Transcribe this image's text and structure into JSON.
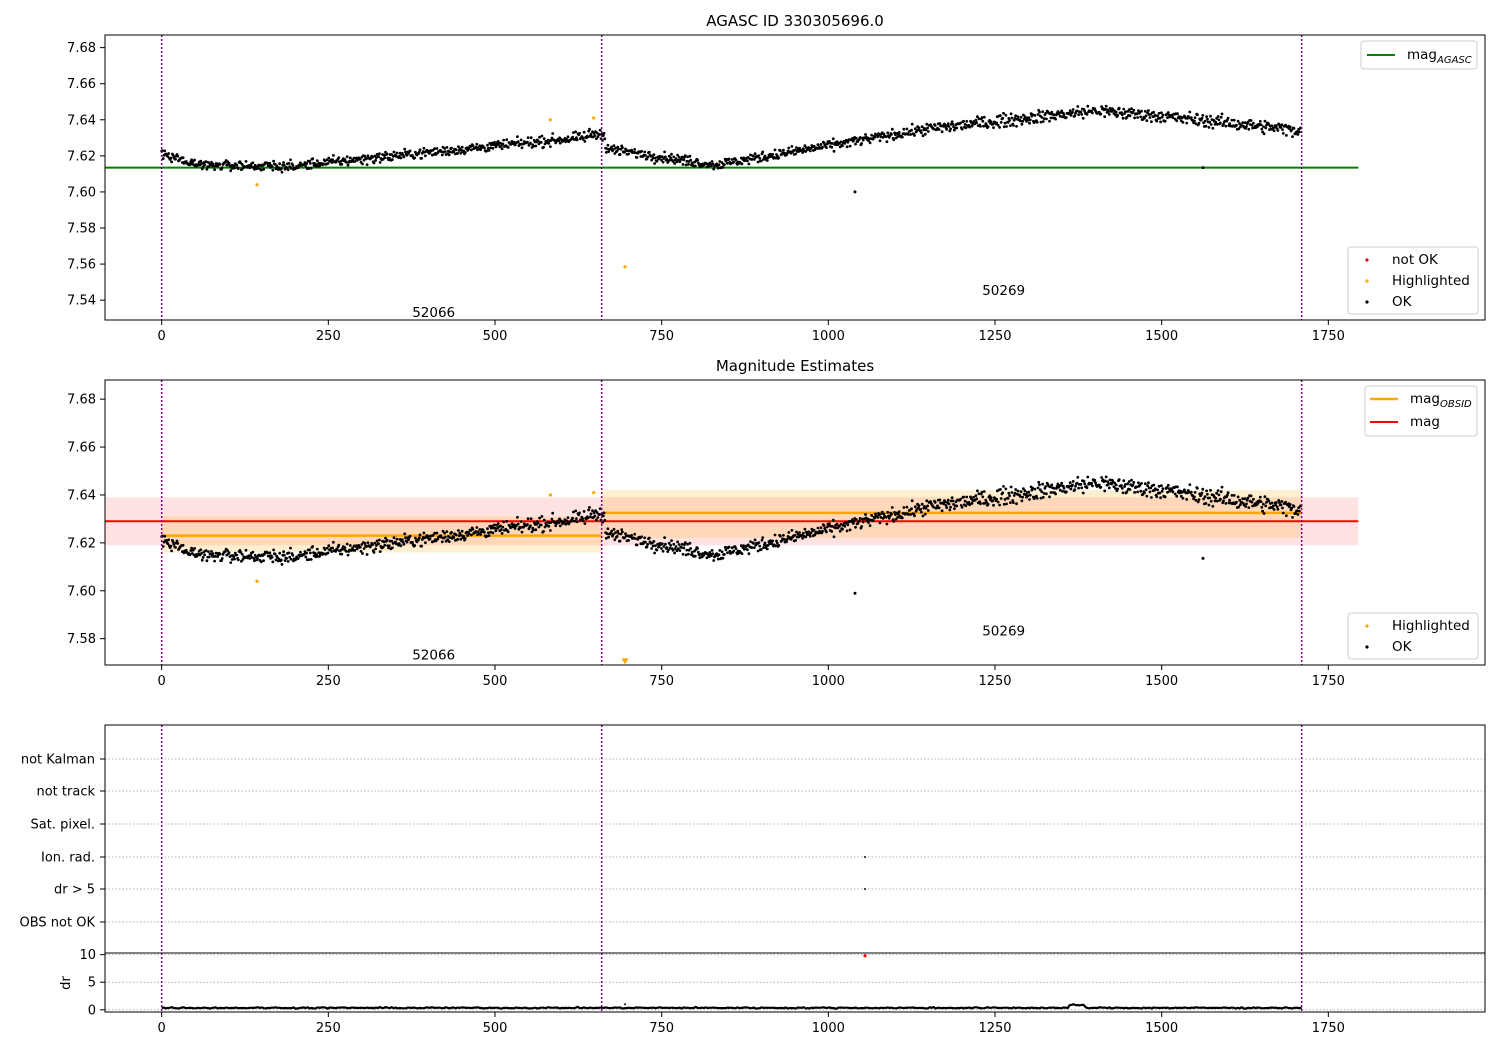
{
  "chart_data": [
    {
      "type": "scatter",
      "title": "AGASC ID 330305696.0",
      "xlabel": "",
      "ylabel": "",
      "xlim": [
        -85,
        1985
      ],
      "ylim": [
        7.529,
        7.687
      ],
      "xticks": [
        0,
        250,
        500,
        750,
        1000,
        1250,
        1500,
        1750
      ],
      "yticks": [
        7.54,
        7.56,
        7.58,
        7.6,
        7.62,
        7.64,
        7.66,
        7.68
      ],
      "ytick_labels": [
        "7.54",
        "7.56",
        "7.58",
        "7.60",
        "7.62",
        "7.64",
        "7.66",
        "7.68"
      ],
      "observation_boundaries": [
        0,
        660,
        1710
      ],
      "obs_labels": [
        {
          "text": "52066",
          "x": 330,
          "y": 7.533
        },
        {
          "text": "50269",
          "x": 1185,
          "y": 7.545
        }
      ],
      "hlines": [
        {
          "name": "mag_AGASC",
          "y": 7.6135,
          "x0": -85,
          "x1": 1795,
          "color": "#008000"
        }
      ],
      "highlighted_points": [
        [
          143,
          7.604
        ],
        [
          583,
          7.64
        ],
        [
          648,
          7.641
        ],
        [
          695,
          7.5585
        ]
      ],
      "extra_points": [
        [
          1040,
          7.6
        ],
        [
          1562,
          7.6135
        ]
      ],
      "legend_top": {
        "position": "upper right",
        "entries": [
          {
            "label": "mag",
            "sub": "AGASC",
            "color": "#008000"
          }
        ]
      },
      "legend_bottom": {
        "position": "lower right",
        "entries": [
          {
            "label": "not OK",
            "color": "#ff0000"
          },
          {
            "label": "Highlighted",
            "color": "#ffa500"
          },
          {
            "label": "OK",
            "color": "#000000"
          }
        ]
      }
    },
    {
      "type": "scatter",
      "title": "Magnitude Estimates",
      "xlabel": "",
      "ylabel": "",
      "xlim": [
        -85,
        1985
      ],
      "ylim": [
        7.569,
        7.688
      ],
      "xticks": [
        0,
        250,
        500,
        750,
        1000,
        1250,
        1500,
        1750
      ],
      "yticks": [
        7.58,
        7.6,
        7.62,
        7.64,
        7.66,
        7.68
      ],
      "ytick_labels": [
        "7.58",
        "7.60",
        "7.62",
        "7.64",
        "7.66",
        "7.68"
      ],
      "observation_boundaries": [
        0,
        660,
        1710
      ],
      "obs_labels": [
        {
          "text": "52066",
          "x": 330,
          "y": 7.573
        },
        {
          "text": "50269",
          "x": 1185,
          "y": 7.583
        }
      ],
      "mag_band": {
        "center": 7.629,
        "low": 7.619,
        "high": 7.639,
        "x0": -85,
        "x1": 1795,
        "color": "#ff0000"
      },
      "obsid_segments": [
        {
          "x0": 0,
          "x1": 660,
          "mean": 7.623,
          "low": 7.616,
          "high": 7.631
        },
        {
          "x0": 660,
          "x1": 1710,
          "mean": 7.6325,
          "low": 7.622,
          "high": 7.642
        }
      ],
      "highlighted_points": [
        [
          143,
          7.604
        ],
        [
          583,
          7.64
        ],
        [
          648,
          7.641
        ]
      ],
      "highlighted_marker": {
        "x": 695,
        "y": 7.5705,
        "shape": "triangle-down"
      },
      "extra_points": [
        [
          1040,
          7.599
        ],
        [
          1562,
          7.6135
        ]
      ],
      "legend_top": {
        "position": "upper right",
        "entries": [
          {
            "label": "mag",
            "sub": "OBSID",
            "color": "#ffa500"
          },
          {
            "label": "mag",
            "sub": "",
            "color": "#ff0000"
          }
        ]
      },
      "legend_bottom": {
        "position": "lower right",
        "entries": [
          {
            "label": "Highlighted",
            "color": "#ffa500"
          },
          {
            "label": "OK",
            "color": "#000000"
          }
        ]
      }
    },
    {
      "type": "scatter",
      "title": "",
      "xlabel": "",
      "ylabel": "",
      "xlim": [
        -85,
        1985
      ],
      "xticks": [
        0,
        250,
        500,
        750,
        1000,
        1250,
        1500,
        1750
      ],
      "categories": [
        "not Kalman",
        "not track",
        "Sat. pixel.",
        "Ion. rad.",
        "dr > 5",
        "OBS not OK"
      ],
      "observation_boundaries": [
        0,
        660,
        1710
      ],
      "flag_points": [
        {
          "category": "Ion. rad.",
          "x": 1055
        },
        {
          "category": "dr > 5",
          "x": 1055
        }
      ]
    },
    {
      "type": "line",
      "title": "",
      "xlabel": "",
      "ylabel": "dr",
      "xlim": [
        -85,
        1985
      ],
      "ylim": [
        -0.4,
        10.3
      ],
      "xticks": [
        0,
        250,
        500,
        750,
        1000,
        1250,
        1500,
        1750
      ],
      "yticks": [
        0,
        5,
        10
      ],
      "ytick_labels": [
        "0",
        "5",
        "10"
      ],
      "observation_boundaries": [
        0,
        660,
        1710
      ],
      "dr_level": 0.35,
      "dr_outliers": [
        [
          695,
          1.0
        ]
      ],
      "not_ok_point": [
        1055,
        9.8
      ]
    }
  ],
  "colors": {
    "ok": "#000000",
    "highlighted": "#ffa500",
    "not_ok": "#ff0000",
    "agasc_line": "#008000",
    "boundary": "#800080"
  }
}
